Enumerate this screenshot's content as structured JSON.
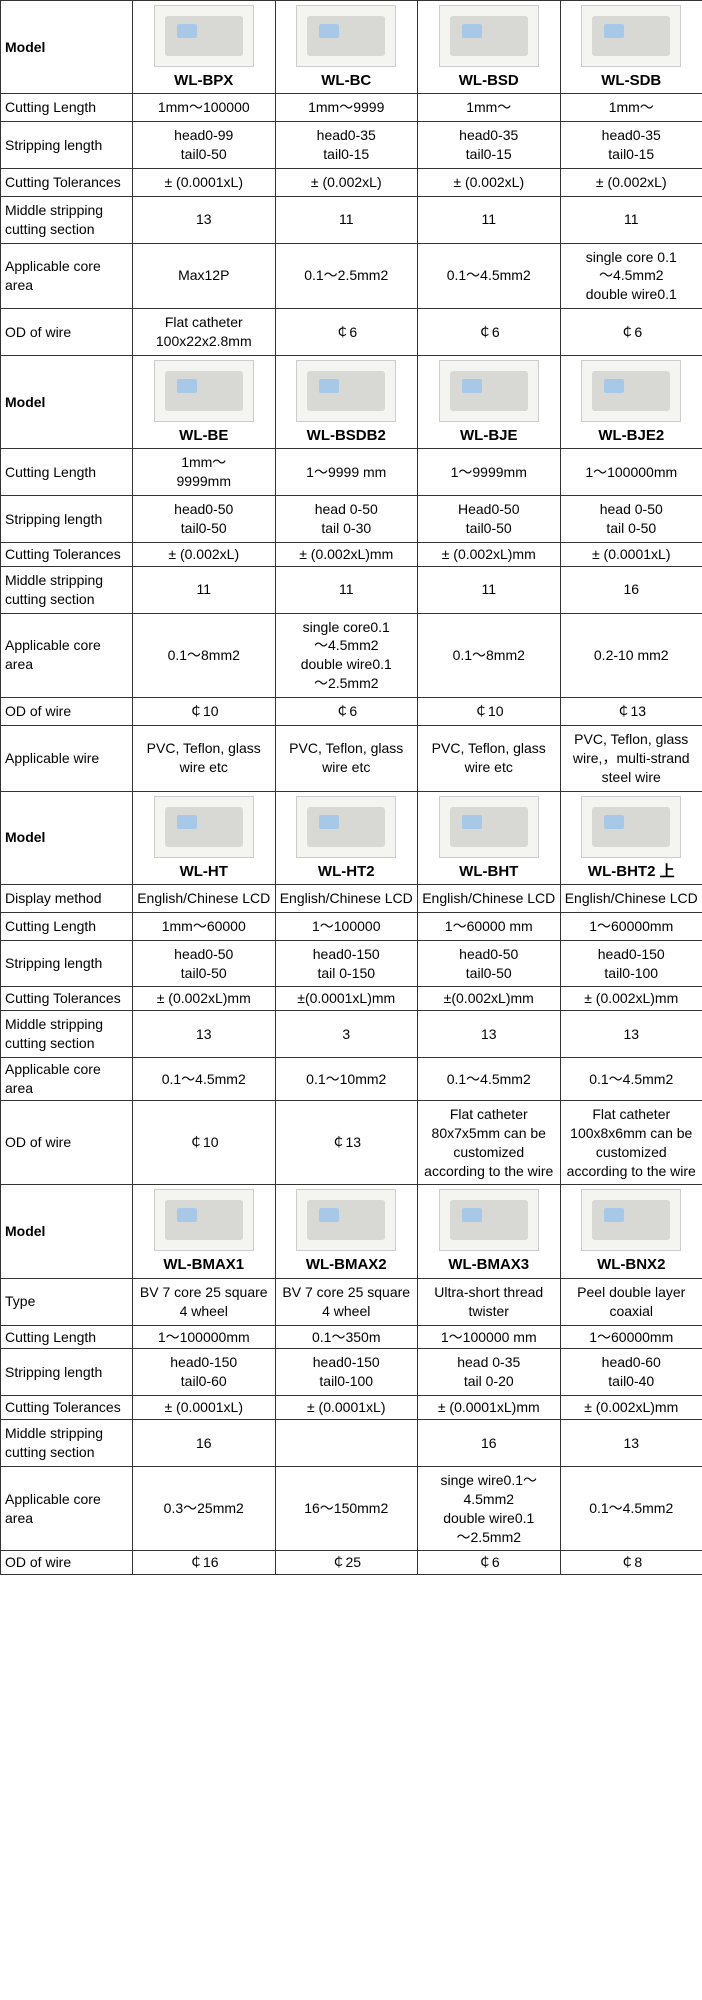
{
  "labels": {
    "model": "Model",
    "cutting_length": "Cutting Length",
    "stripping_length": "Stripping length",
    "cutting_tolerances": "Cutting Tolerances",
    "middle_stripping": "Middle stripping cutting section",
    "applicable_core": "Applicable core area",
    "od_of_wire": "OD of wire",
    "applicable_wire": "Applicable wire",
    "display_method": "Display method",
    "type": "Type"
  },
  "sec1": {
    "models": [
      "WL-BPX",
      "WL-BC",
      "WL-BSD",
      "WL-SDB"
    ],
    "rows": {
      "cutting_length": [
        "1mm～100000",
        "1mm～9999",
        "1mm～",
        "1mm～"
      ],
      "stripping_length": [
        "head0-99\ntail0-50",
        "head0-35\ntail0-15",
        "head0-35\ntail0-15",
        "head0-35\ntail0-15"
      ],
      "cutting_tolerances": [
        "± (0.0001xL)",
        "± (0.002xL)",
        "± (0.002xL)",
        "± (0.002xL)"
      ],
      "middle_stripping": [
        "13",
        "11",
        "11",
        "11"
      ],
      "applicable_core": [
        "Max12P",
        "0.1～2.5mm2",
        "0.1～4.5mm2",
        "single core 0.1\n～4.5mm2\ndouble wire0.1"
      ],
      "od_of_wire": [
        "Flat catheter\n100x22x2.8mm",
        "￠6",
        "￠6",
        "￠6"
      ]
    }
  },
  "sec2": {
    "models": [
      "WL-BE",
      "WL-BSDB2",
      "WL-BJE",
      "WL-BJE2"
    ],
    "rows": {
      "cutting_length": [
        "1mm～\n9999mm",
        "1～9999 mm",
        "1～9999mm",
        "1～100000mm"
      ],
      "stripping_length": [
        "head0-50\ntail0-50",
        "head 0-50\ntail 0-30",
        "Head0-50\ntail0-50",
        "head 0-50\ntail 0-50"
      ],
      "cutting_tolerances": [
        "± (0.002xL)",
        "± (0.002xL)mm",
        "± (0.002xL)mm",
        "± (0.0001xL)"
      ],
      "middle_stripping": [
        "11",
        "11",
        "11",
        "16"
      ],
      "applicable_core": [
        "0.1～8mm2",
        "single core0.1\n～4.5mm2\ndouble wire0.1\n～2.5mm2",
        "0.1～8mm2",
        "0.2-10 mm2"
      ],
      "od_of_wire": [
        "￠10",
        "￠6",
        "￠10",
        "￠13"
      ],
      "applicable_wire": [
        "PVC, Teflon, glass wire etc",
        "PVC, Teflon, glass wire etc",
        "PVC, Teflon, glass wire etc",
        "PVC, Teflon, glass wire,，multi-strand steel wire"
      ]
    }
  },
  "sec3": {
    "models": [
      "WL-HT",
      "WL-HT2",
      "WL-BHT",
      "WL-BHT2 上"
    ],
    "rows": {
      "display_method": [
        "English/Chinese LCD",
        "English/Chinese LCD",
        "English/Chinese LCD",
        "English/Chinese LCD"
      ],
      "cutting_length": [
        "1mm～60000",
        "1～100000",
        "1～60000 mm",
        "1～60000mm"
      ],
      "stripping_length": [
        "head0-50\ntail0-50",
        "head0-150\ntail 0-150",
        "head0-50\ntail0-50",
        "head0-150\ntail0-100"
      ],
      "cutting_tolerances": [
        "± (0.002xL)mm",
        "±(0.0001xL)mm",
        "±(0.002xL)mm",
        "± (0.002xL)mm"
      ],
      "middle_stripping": [
        "13",
        "3",
        "13",
        "13"
      ],
      "applicable_core": [
        "0.1～4.5mm2",
        "0.1～10mm2",
        "0.1～4.5mm2",
        "0.1～4.5mm2"
      ],
      "od_of_wire": [
        "￠10",
        "￠13",
        "Flat catheter 80x7x5mm can be customized according to the wire",
        "Flat catheter 100x8x6mm can be customized according to the wire"
      ]
    }
  },
  "sec4": {
    "models": [
      "WL-BMAX1",
      "WL-BMAX2",
      "WL-BMAX3",
      "WL-BNX2"
    ],
    "rows": {
      "type": [
        "BV 7 core 25 square 4 wheel",
        "BV 7 core 25 square 4 wheel",
        "Ultra-short thread twister",
        "Peel double layer coaxial"
      ],
      "cutting_length": [
        "1～100000mm",
        "0.1～350m",
        "1～100000 mm",
        "1～60000mm"
      ],
      "stripping_length": [
        "head0-150\ntail0-60",
        "head0-150\ntail0-100",
        "head 0-35\ntail 0-20",
        "head0-60\ntail0-40"
      ],
      "cutting_tolerances": [
        "± (0.0001xL)",
        "± (0.0001xL)",
        "± (0.0001xL)mm",
        "± (0.002xL)mm"
      ],
      "middle_stripping": [
        "16",
        "",
        "16",
        "13"
      ],
      "applicable_core": [
        "0.3～25mm2",
        "16～150mm2",
        "singe wire0.1～4.5mm2\ndouble wire0.1\n～2.5mm2",
        "0.1～4.5mm2"
      ],
      "od_of_wire": [
        "￠16",
        "￠25",
        "￠6",
        "￠8"
      ]
    }
  }
}
